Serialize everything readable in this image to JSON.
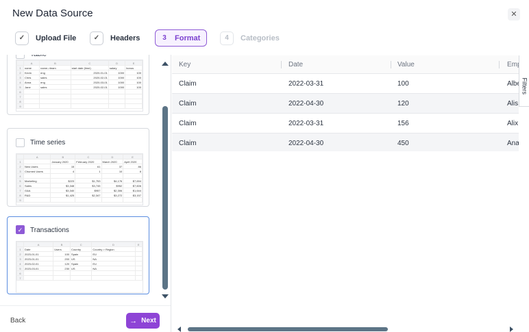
{
  "dialog": {
    "title": "New Data Source",
    "close_glyph": "✕"
  },
  "steps": [
    {
      "marker": "✓",
      "label": "Upload File",
      "state": "done"
    },
    {
      "marker": "✓",
      "label": "Headers",
      "state": "done"
    },
    {
      "marker": "3",
      "label": "Format",
      "state": "active"
    },
    {
      "marker": "4",
      "label": "Categories",
      "state": "disabled"
    }
  ],
  "formats": [
    {
      "label": "Table",
      "selected": false,
      "preview": {
        "cols": [
          "A",
          "B",
          "C",
          "D",
          "E"
        ],
        "rows": [
          [
            "name",
            "name->team",
            "start date (time)",
            "salary",
            "bonus"
          ],
          [
            "Kevin",
            "eng",
            "2020-01-01",
            "1000",
            "100"
          ],
          [
            "Chris",
            "sales",
            "2020-02-01",
            "1000",
            "100"
          ],
          [
            "Anna",
            "eng",
            "2020-03-01",
            "1000",
            "100"
          ],
          [
            "Jane",
            "sales",
            "2020-02-01",
            "1000",
            "100"
          ],
          [
            "",
            "",
            "",
            "",
            ""
          ],
          [
            "",
            "",
            "",
            "",
            ""
          ],
          [
            "",
            "",
            "",
            "",
            ""
          ],
          [
            "",
            "",
            "",
            "",
            ""
          ]
        ]
      }
    },
    {
      "label": "Time series",
      "selected": false,
      "preview": {
        "cols": [
          "A",
          "B",
          "C",
          "D",
          "E"
        ],
        "rows": [
          [
            "",
            "January 2020",
            "February 2020",
            "March 2020",
            "April 2020"
          ],
          [
            "New Users",
            "15",
            "61",
            "37",
            "86"
          ],
          [
            "Churned Users",
            "4",
            "1",
            "10",
            "8"
          ],
          [
            "",
            "",
            "",
            "",
            ""
          ],
          [
            "Marketing",
            "$223",
            "$1,753",
            "$4,176",
            "$7,694"
          ],
          [
            "Sales",
            "$3,348",
            "$3,745",
            "$952",
            "$7,606"
          ],
          [
            "G&A",
            "$3,340",
            "$957",
            "$2,306",
            "$1,644"
          ],
          [
            "R&D",
            "$1,425",
            "$2,347",
            "$3,272",
            "$3,157"
          ],
          [
            "",
            "",
            "",
            "",
            ""
          ]
        ]
      }
    },
    {
      "label": "Transactions",
      "selected": true,
      "preview": {
        "cols": [
          "A",
          "B",
          "C",
          "D",
          "E"
        ],
        "rows": [
          [
            "Date",
            "Users",
            "Country",
            "Country > Region",
            ""
          ],
          [
            "2023-01-01",
            "100",
            "Spain",
            "EU",
            ""
          ],
          [
            "2023-01-01",
            "200",
            "US",
            "NA",
            ""
          ],
          [
            "2023-02-01",
            "120",
            "Spain",
            "EU",
            ""
          ],
          [
            "2023-03-01",
            "230",
            "US",
            "NA",
            ""
          ],
          [
            "",
            "",
            "",
            "",
            ""
          ],
          [
            "",
            "",
            "",
            "",
            ""
          ]
        ]
      }
    }
  ],
  "footer": {
    "back_label": "Back",
    "next_label": "Next",
    "next_arrow": "→"
  },
  "grid": {
    "columns": [
      "Key",
      "Date",
      "Value",
      "Emp"
    ],
    "rows": [
      [
        "Claim",
        "2022-03-31",
        "100",
        "Albe"
      ],
      [
        "Claim",
        "2022-04-30",
        "120",
        "Alis"
      ],
      [
        "Claim",
        "2022-03-31",
        "156",
        "Alix"
      ],
      [
        "Claim",
        "2022-04-30",
        "450",
        "Ana"
      ]
    ]
  },
  "side_tab": {
    "label": "Filters"
  },
  "colors": {
    "accent": "#8e44d6",
    "selected_border": "#5a8de0",
    "scrollbar": "#5c7486"
  }
}
